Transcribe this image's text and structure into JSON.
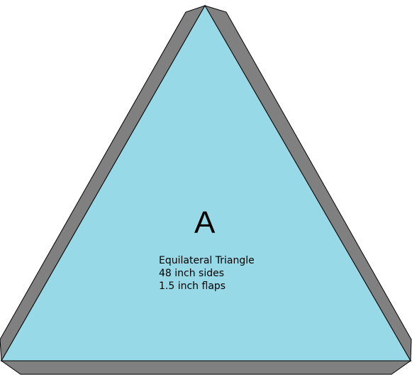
{
  "panel": {
    "label": "A",
    "specs": {
      "shape": "Equilateral Triangle",
      "sides": "48 inch sides",
      "flaps": "1.5 inch flaps"
    }
  },
  "colors": {
    "face": "#98d9e8",
    "flap": "#808080",
    "outline": "#000000"
  }
}
